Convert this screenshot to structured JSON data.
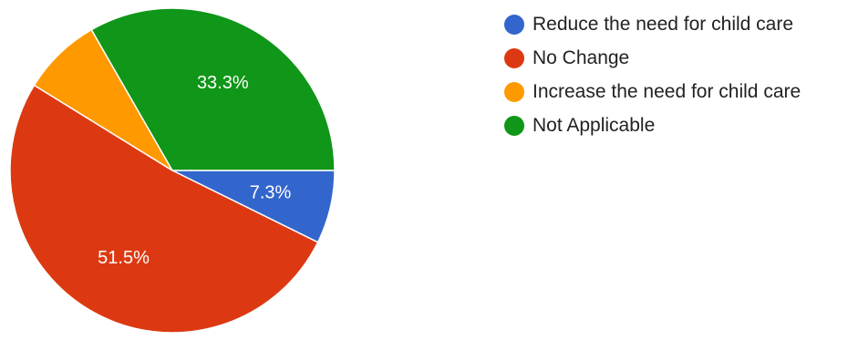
{
  "chart_data": {
    "type": "pie",
    "start_angle_deg": 90,
    "direction": "clockwise",
    "legend_position": "right",
    "slices": [
      {
        "name": "Reduce the need for child care",
        "value": 7.3,
        "label": "7.3%",
        "color": "#3366cc"
      },
      {
        "name": "No Change",
        "value": 51.5,
        "label": "51.5%",
        "color": "#dc3912"
      },
      {
        "name": "Increase the need for child care",
        "value": 7.9,
        "label": "",
        "color": "#ff9900"
      },
      {
        "name": "Not Applicable",
        "value": 33.3,
        "label": "33.3%",
        "color": "#109618"
      }
    ]
  }
}
